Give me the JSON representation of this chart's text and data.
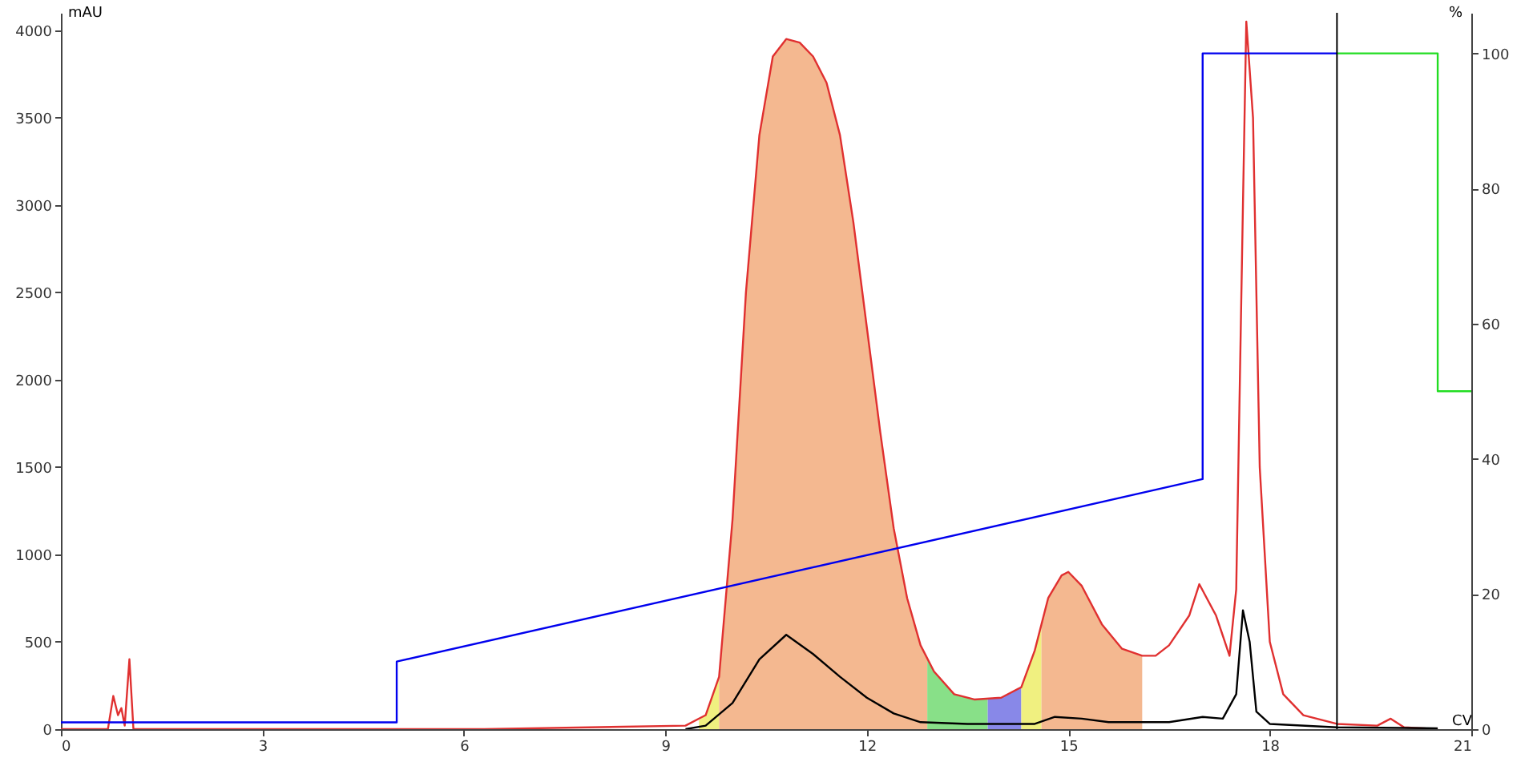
{
  "chart_data": {
    "type": "line",
    "xlabel": "CV",
    "ylabel": "mAU",
    "y2label": "%",
    "xlim": [
      0,
      21
    ],
    "xticks": [
      0,
      3,
      6,
      9,
      12,
      15,
      18,
      21
    ],
    "ylim": [
      0,
      4100
    ],
    "yticks": [
      0,
      500,
      1000,
      1500,
      2000,
      2500,
      3000,
      3500,
      4000
    ],
    "y2lim": [
      0,
      106
    ],
    "y2ticks": [
      0,
      20,
      40,
      60,
      80,
      100
    ],
    "series": [
      {
        "type": "area",
        "color": "#f0f080",
        "x": [
          9.5,
          9.6,
          9.8
        ],
        "values": [
          50,
          80,
          300
        ]
      },
      {
        "type": "area",
        "color": "#f4b890",
        "x": [
          9.8,
          10.0,
          10.2,
          10.4,
          10.6,
          10.8,
          11.0,
          11.2,
          11.4,
          11.6,
          11.8,
          12.0,
          12.2,
          12.4,
          12.6,
          12.8,
          12.9
        ],
        "values": [
          300,
          1200,
          2500,
          3400,
          3850,
          3950,
          3930,
          3850,
          3700,
          3400,
          2900,
          2300,
          1700,
          1150,
          750,
          480,
          400
        ]
      },
      {
        "type": "area",
        "color": "#88e088",
        "x": [
          12.9,
          13.0,
          13.3,
          13.6,
          13.8
        ],
        "values": [
          400,
          330,
          200,
          170,
          175
        ]
      },
      {
        "type": "area",
        "color": "#8888e8",
        "x": [
          13.8,
          14.0,
          14.3
        ],
        "values": [
          175,
          180,
          240
        ]
      },
      {
        "type": "area",
        "color": "#f0f080",
        "x": [
          14.3,
          14.5,
          14.6
        ],
        "values": [
          240,
          450,
          600
        ]
      },
      {
        "type": "area",
        "color": "#f4b890",
        "x": [
          14.6,
          14.7,
          14.9,
          15.0,
          15.2,
          15.5,
          15.8,
          16.1
        ],
        "values": [
          600,
          750,
          880,
          900,
          820,
          600,
          460,
          420
        ]
      },
      {
        "color": "#e03030",
        "x": [
          0,
          0.7,
          0.78,
          0.85,
          0.9,
          0.95,
          1.02,
          1.08,
          6.3,
          9.3,
          9.6,
          9.8,
          10.0,
          10.2,
          10.4,
          10.6,
          10.8,
          11.0,
          11.2,
          11.4,
          11.6,
          11.8,
          12.0,
          12.2,
          12.4,
          12.6,
          12.8,
          13.0,
          13.3,
          13.6,
          14.0,
          14.3,
          14.5,
          14.7,
          14.9,
          15.0,
          15.2,
          15.5,
          15.8,
          16.1,
          16.3,
          16.5,
          16.8,
          16.95,
          17.2,
          17.4,
          17.5,
          17.6,
          17.65,
          17.75,
          17.85,
          18.0,
          18.2,
          18.5,
          19.0,
          19.6,
          19.8,
          20.0,
          20.5
        ],
        "values": [
          0,
          0,
          190,
          80,
          120,
          20,
          400,
          0,
          0,
          20,
          80,
          300,
          1200,
          2500,
          3400,
          3850,
          3950,
          3930,
          3850,
          3700,
          3400,
          2900,
          2300,
          1700,
          1150,
          750,
          480,
          330,
          200,
          170,
          180,
          240,
          450,
          750,
          880,
          900,
          820,
          600,
          460,
          420,
          420,
          480,
          650,
          830,
          650,
          420,
          800,
          3000,
          4050,
          3500,
          1500,
          500,
          200,
          80,
          30,
          20,
          60,
          10,
          0
        ]
      },
      {
        "color": "#000000",
        "x": [
          9.3,
          9.6,
          10.0,
          10.4,
          10.8,
          11.2,
          11.6,
          12.0,
          12.4,
          12.8,
          13.5,
          14.5,
          14.8,
          15.2,
          15.6,
          16.5,
          17.0,
          17.3,
          17.5,
          17.6,
          17.7,
          17.8,
          18.0,
          19.0,
          20.5
        ],
        "values": [
          0,
          20,
          150,
          400,
          540,
          430,
          300,
          180,
          90,
          40,
          30,
          30,
          70,
          60,
          40,
          40,
          70,
          60,
          200,
          680,
          500,
          100,
          30,
          10,
          5
        ]
      },
      {
        "type": "line",
        "axis": "y2",
        "color": "#0000ee",
        "x": [
          0,
          5,
          5,
          17,
          17,
          19
        ],
        "values": [
          1,
          1,
          10,
          37,
          100,
          100
        ]
      },
      {
        "type": "line",
        "axis": "y2",
        "color": "#22dd22",
        "x": [
          19,
          20.5,
          20.5,
          21
        ],
        "values": [
          100,
          100,
          50,
          50
        ]
      }
    ],
    "ref_lines": [
      {
        "axis": "x",
        "value": 19,
        "color": "#000000"
      }
    ]
  }
}
